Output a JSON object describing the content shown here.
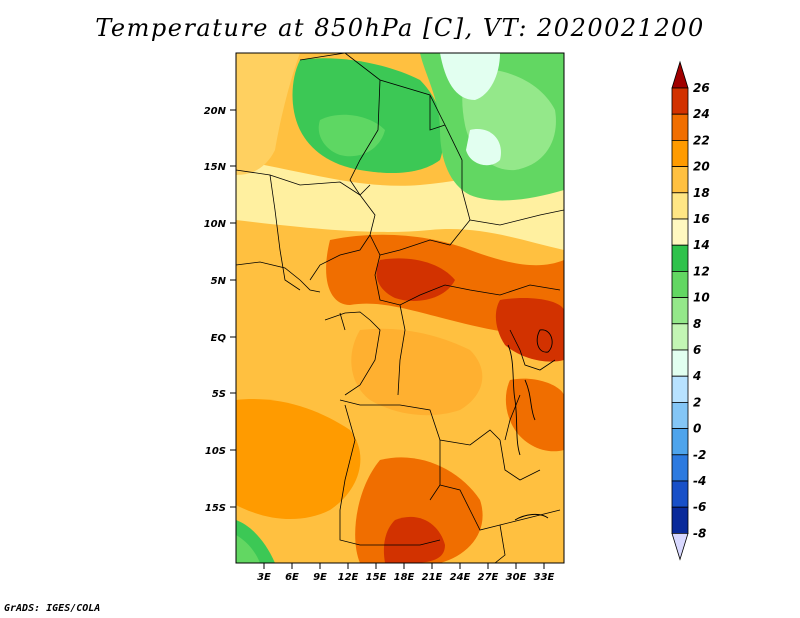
{
  "title": "Temperature at 850hPa [C], VT: 2020021200",
  "footer": "GrADS: IGES/COLA",
  "map": {
    "lat_labels": [
      "20N",
      "15N",
      "10N",
      "5N",
      "EQ",
      "5S",
      "10S",
      "15S"
    ],
    "lon_labels": [
      "3E",
      "6E",
      "9E",
      "12E",
      "15E",
      "18E",
      "21E",
      "24E",
      "27E",
      "30E",
      "33E"
    ],
    "region": "Central Africa",
    "field": "Temperature at 850hPa"
  },
  "colorbar": {
    "labels": [
      "26",
      "24",
      "22",
      "20",
      "18",
      "16",
      "14",
      "12",
      "10",
      "8",
      "6",
      "4",
      "2",
      "0",
      "-2",
      "-4",
      "-6",
      "-8"
    ],
    "colors": [
      "#780000",
      "#a00000",
      "#d23200",
      "#f06e00",
      "#ff9b00",
      "#ffc040",
      "#ffe685",
      "#fff8c0",
      "#2ec24b",
      "#62d762",
      "#94e88a",
      "#c3f5b4",
      "#e2fff0",
      "#b8e2ff",
      "#84c6f6",
      "#4ea4ec",
      "#2c7ae0",
      "#1850c8",
      "#0a2a9a",
      "#000064"
    ]
  }
}
